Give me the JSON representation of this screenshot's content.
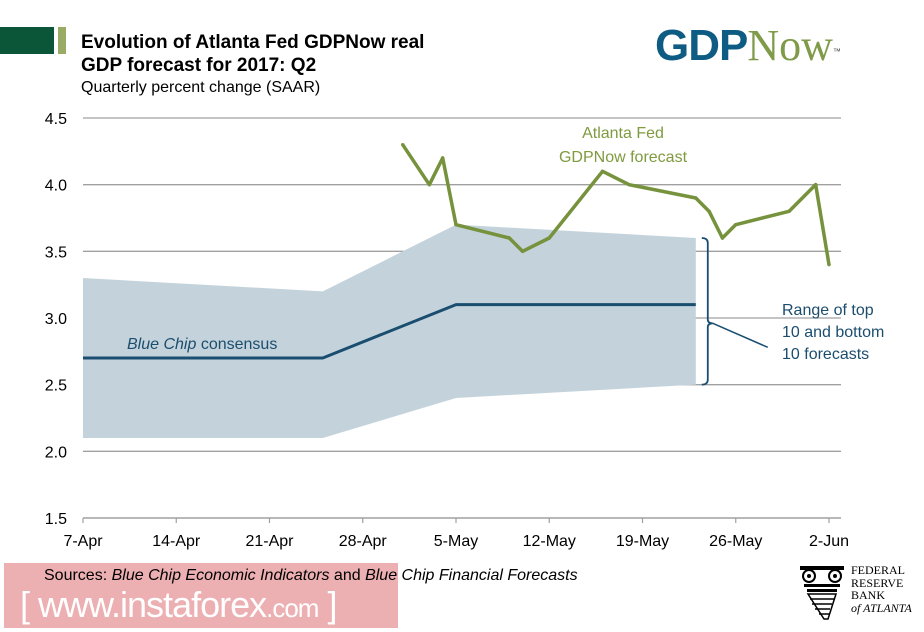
{
  "header": {
    "title_line1": "Evolution of Atlanta Fed GDPNow real",
    "title_line2": "GDP forecast for 2017: Q2",
    "subtitle": "Quarterly percent change (SAAR)"
  },
  "logo": {
    "part1": "GDP",
    "part2": "Now",
    "tm": "™"
  },
  "footer": {
    "sources_prefix": "Sources: ",
    "source1": "Blue Chip Economic Indicators",
    "connector": " and ",
    "source2": "Blue Chip Financial Forecasts",
    "watermark_main": "www.instaforex",
    "watermark_suffix": ".com",
    "watermark_open": "[",
    "watermark_close": "]",
    "fed_logo_lines": [
      "FEDERAL",
      "RESERVE",
      "BANK",
      "of ATLANTA"
    ]
  },
  "colors": {
    "gdpnow_line": "#76923c",
    "bluechip_line": "#1a4e70",
    "band_fill": "#c4d3db",
    "grid": "#a0a0a0",
    "brand_dark_green": "#0b5638",
    "brand_light_green": "#9aab66"
  },
  "chart_data": {
    "type": "line",
    "title": "Evolution of Atlanta Fed GDPNow real GDP forecast for 2017: Q2",
    "subtitle": "Quarterly percent change (SAAR)",
    "xlabel": "",
    "ylabel": "",
    "ylim": [
      1.5,
      4.5
    ],
    "yticks": [
      "4.5",
      "4.0",
      "3.5",
      "3.0",
      "2.5",
      "2.0",
      "1.5"
    ],
    "ytick_values": [
      4.5,
      4.0,
      3.5,
      3.0,
      2.5,
      2.0,
      1.5
    ],
    "x_unit": "days since 7-Apr-2017",
    "xlim": [
      0,
      56
    ],
    "xticks": [
      "7-Apr",
      "14-Apr",
      "21-Apr",
      "28-Apr",
      "5-May",
      "12-May",
      "19-May",
      "26-May",
      "2-Jun"
    ],
    "xtick_values": [
      0,
      7,
      14,
      21,
      28,
      35,
      42,
      49,
      56
    ],
    "grid": true,
    "series": [
      {
        "name": "Atlanta Fed GDPNow forecast",
        "type": "line",
        "x": [
          24,
          26,
          27,
          28,
          32,
          33,
          35,
          39,
          41,
          46,
          47,
          48,
          49,
          53,
          55,
          56
        ],
        "y": [
          4.3,
          4.0,
          4.2,
          3.7,
          3.6,
          3.5,
          3.6,
          4.1,
          4.0,
          3.9,
          3.8,
          3.6,
          3.7,
          3.8,
          4.0,
          3.4
        ]
      },
      {
        "name": "Blue Chip consensus",
        "type": "line",
        "x": [
          0,
          18,
          28,
          46
        ],
        "y": [
          2.7,
          2.7,
          3.1,
          3.1
        ]
      },
      {
        "name": "Range of top 10 and bottom 10 forecasts",
        "type": "area",
        "x": [
          0,
          18,
          28,
          46
        ],
        "upper": [
          3.3,
          3.2,
          3.7,
          3.6
        ],
        "lower": [
          2.1,
          2.1,
          2.4,
          2.5
        ]
      }
    ],
    "annotations": {
      "gdpnow_label": [
        "Atlanta Fed",
        "GDPNow forecast"
      ],
      "bluechip_label_italic": "Blue Chip",
      "bluechip_label_rest": " consensus",
      "range_label": [
        "Range of top",
        "10 and bottom",
        "10 forecasts"
      ]
    }
  }
}
